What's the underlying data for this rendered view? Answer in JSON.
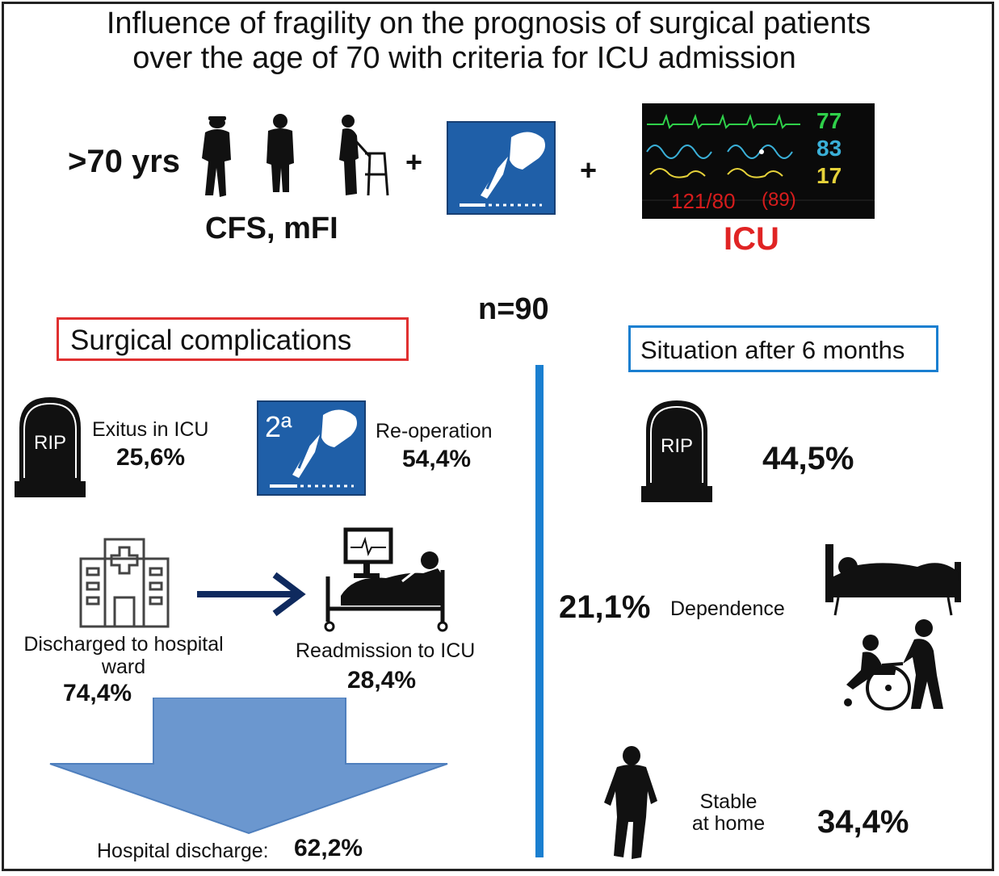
{
  "title": {
    "line1": "Influence of fragility on the prognosis of surgical patients",
    "line2": "over the age of 70 with criteria for ICU admission"
  },
  "inclusion": {
    "age": ">70 yrs",
    "scales": "CFS, mFI",
    "plus": "+",
    "icu_label": "ICU",
    "monitor": {
      "hr": "77",
      "spo2": "83",
      "rr": "17",
      "bp": "121/80",
      "map": "(89)"
    }
  },
  "sample": "n=90",
  "left": {
    "heading": "Surgical complications",
    "exitus": {
      "icon": "rip-tombstone-icon",
      "label": "Exitus in ICU",
      "value": "25,6%"
    },
    "reoperation": {
      "icon": "second-surgery-icon",
      "badge": "2ª",
      "label": "Re-operation",
      "value": "54,4%"
    },
    "ward": {
      "icon": "hospital-icon",
      "label_line1": "Discharged to hospital",
      "label_line2": "ward",
      "value": "74,4%"
    },
    "readmission": {
      "icon": "icu-bed-icon",
      "label": "Readmission to ICU",
      "value": "28,4%"
    },
    "discharge": {
      "label": "Hospital discharge:",
      "value": "62,2%"
    }
  },
  "right": {
    "heading": "Situation after 6 months",
    "death": {
      "icon": "rip-tombstone-icon",
      "value": "44,5%"
    },
    "dependence": {
      "icon": "bedridden-icon",
      "label": "Dependence",
      "value": "21,1%"
    },
    "home": {
      "icon": "walking-person-icon",
      "label_line1": "Stable",
      "label_line2": "at home",
      "value": "34,4%"
    }
  },
  "colors": {
    "accent_blue": "#1a7fd0",
    "icon_blue": "#1f5fa8",
    "arrow_blue": "#6b97cf",
    "icu_red": "#e02424",
    "navy": "#0f2a5e"
  }
}
